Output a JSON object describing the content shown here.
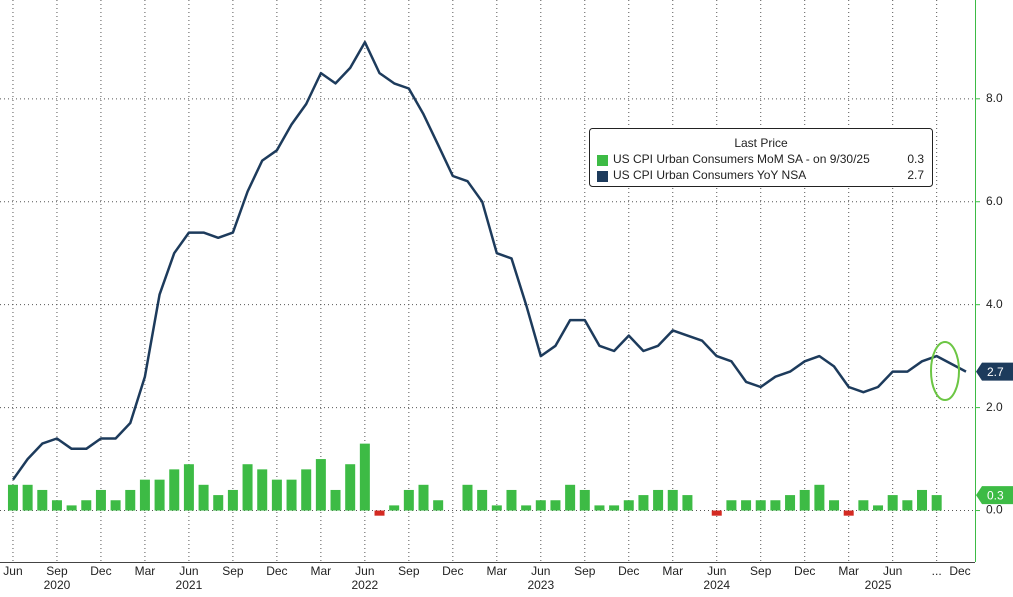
{
  "chart_data": {
    "type": "bar-line",
    "legend_title": "Last Price",
    "xlim": [
      "2020-05",
      "2025-11"
    ],
    "ylim": [
      -1,
      9.92
    ],
    "yticks": [
      {
        "value": 0,
        "label": "0.0"
      },
      {
        "value": 2,
        "label": "2.0"
      },
      {
        "value": 4,
        "label": "4.0"
      },
      {
        "value": 6,
        "label": "6.0"
      },
      {
        "value": 8,
        "label": "8.0"
      }
    ],
    "xticks": [
      {
        "value": "2020-06",
        "label": "Jun"
      },
      {
        "value": "2020-09",
        "label": "Sep"
      },
      {
        "value": "2020-12",
        "label": "Dec"
      },
      {
        "value": "2021-03",
        "label": "Mar"
      },
      {
        "value": "2021-06",
        "label": "Jun"
      },
      {
        "value": "2021-09",
        "label": "Sep"
      },
      {
        "value": "2021-12",
        "label": "Dec"
      },
      {
        "value": "2022-03",
        "label": "Mar"
      },
      {
        "value": "2022-06",
        "label": "Jun"
      },
      {
        "value": "2022-09",
        "label": "Sep"
      },
      {
        "value": "2022-12",
        "label": "Dec"
      },
      {
        "value": "2023-03",
        "label": "Mar"
      },
      {
        "value": "2023-06",
        "label": "Jun"
      },
      {
        "value": "2023-09",
        "label": "Sep"
      },
      {
        "value": "2023-12",
        "label": "Dec"
      },
      {
        "value": "2024-03",
        "label": "Mar"
      },
      {
        "value": "2024-06",
        "label": "Jun"
      },
      {
        "value": "2024-09",
        "label": "Sep"
      },
      {
        "value": "2024-12",
        "label": "Dec"
      },
      {
        "value": "2025-03",
        "label": "Mar"
      },
      {
        "value": "2025-06",
        "label": "Jun"
      },
      {
        "value": "2025-09",
        "label": "..."
      },
      {
        "value": "2025-12",
        "label": "Dec"
      }
    ],
    "year_ticks": [
      {
        "value": "2020-09",
        "label": "2020"
      },
      {
        "value": "2021-06",
        "label": "2021"
      },
      {
        "value": "2022-06",
        "label": "2022"
      },
      {
        "value": "2023-06",
        "label": "2023"
      },
      {
        "value": "2024-06",
        "label": "2024"
      },
      {
        "value": "2025-05",
        "label": "2025"
      }
    ],
    "grid": true,
    "series": [
      {
        "name": "US CPI Urban Consumers MoM SA -  on 9/30/25",
        "type": "bar",
        "color": "#3dbb45",
        "negative_color": "#d42a22",
        "x": [
          "2020-06",
          "2020-07",
          "2020-08",
          "2020-09",
          "2020-10",
          "2020-11",
          "2020-12",
          "2021-01",
          "2021-02",
          "2021-03",
          "2021-04",
          "2021-05",
          "2021-06",
          "2021-07",
          "2021-08",
          "2021-09",
          "2021-10",
          "2021-11",
          "2021-12",
          "2022-01",
          "2022-02",
          "2022-03",
          "2022-04",
          "2022-05",
          "2022-06",
          "2022-07",
          "2022-08",
          "2022-09",
          "2022-10",
          "2022-11",
          "2022-12",
          "2023-01",
          "2023-02",
          "2023-03",
          "2023-04",
          "2023-05",
          "2023-06",
          "2023-07",
          "2023-08",
          "2023-09",
          "2023-10",
          "2023-11",
          "2023-12",
          "2024-01",
          "2024-02",
          "2024-03",
          "2024-04",
          "2024-05",
          "2024-06",
          "2024-07",
          "2024-08",
          "2024-09",
          "2024-10",
          "2024-11",
          "2024-12",
          "2025-01",
          "2025-02",
          "2025-03",
          "2025-04",
          "2025-05",
          "2025-06",
          "2025-07",
          "2025-08",
          "2025-09"
        ],
        "values": [
          0.5,
          0.5,
          0.4,
          0.2,
          0.1,
          0.2,
          0.4,
          0.2,
          0.4,
          0.6,
          0.6,
          0.8,
          0.9,
          0.5,
          0.3,
          0.4,
          0.9,
          0.8,
          0.6,
          0.6,
          0.8,
          1.0,
          0.4,
          0.9,
          1.3,
          -0.1,
          0.1,
          0.4,
          0.5,
          0.2,
          0.0,
          0.5,
          0.4,
          0.1,
          0.4,
          0.1,
          0.2,
          0.2,
          0.5,
          0.4,
          0.1,
          0.1,
          0.2,
          0.3,
          0.4,
          0.4,
          0.3,
          0.0,
          -0.1,
          0.2,
          0.2,
          0.2,
          0.2,
          0.3,
          0.4,
          0.5,
          0.2,
          -0.1,
          0.2,
          0.1,
          0.3,
          0.2,
          0.4,
          0.3
        ]
      },
      {
        "name": "US CPI Urban Consumers YoY NSA",
        "type": "line",
        "color": "#1d3b5c",
        "x": [
          "2020-06",
          "2020-07",
          "2020-08",
          "2020-09",
          "2020-10",
          "2020-11",
          "2020-12",
          "2021-01",
          "2021-02",
          "2021-03",
          "2021-04",
          "2021-05",
          "2021-06",
          "2021-07",
          "2021-08",
          "2021-09",
          "2021-10",
          "2021-11",
          "2021-12",
          "2022-01",
          "2022-02",
          "2022-03",
          "2022-04",
          "2022-05",
          "2022-06",
          "2022-07",
          "2022-08",
          "2022-09",
          "2022-10",
          "2022-11",
          "2022-12",
          "2023-01",
          "2023-02",
          "2023-03",
          "2023-04",
          "2023-05",
          "2023-06",
          "2023-07",
          "2023-08",
          "2023-09",
          "2023-10",
          "2023-11",
          "2023-12",
          "2024-01",
          "2024-02",
          "2024-03",
          "2024-04",
          "2024-05",
          "2024-06",
          "2024-07",
          "2024-08",
          "2024-09",
          "2024-10",
          "2024-11",
          "2024-12",
          "2025-01",
          "2025-02",
          "2025-03",
          "2025-04",
          "2025-05",
          "2025-06",
          "2025-07",
          "2025-08",
          "2025-09",
          "2025-11"
        ],
        "values": [
          0.6,
          1.0,
          1.3,
          1.4,
          1.2,
          1.2,
          1.4,
          1.4,
          1.7,
          2.6,
          4.2,
          5.0,
          5.4,
          5.4,
          5.3,
          5.4,
          6.2,
          6.8,
          7.0,
          7.5,
          7.9,
          8.5,
          8.3,
          8.6,
          9.1,
          8.5,
          8.3,
          8.2,
          7.7,
          7.1,
          6.5,
          6.4,
          6.0,
          5.0,
          4.9,
          4.0,
          3.0,
          3.2,
          3.7,
          3.7,
          3.2,
          3.1,
          3.4,
          3.1,
          3.2,
          3.5,
          3.4,
          3.3,
          3.0,
          2.9,
          2.5,
          2.4,
          2.6,
          2.7,
          2.9,
          3.0,
          2.8,
          2.4,
          2.3,
          2.4,
          2.7,
          2.7,
          2.9,
          3.0,
          2.7
        ]
      }
    ]
  }
}
